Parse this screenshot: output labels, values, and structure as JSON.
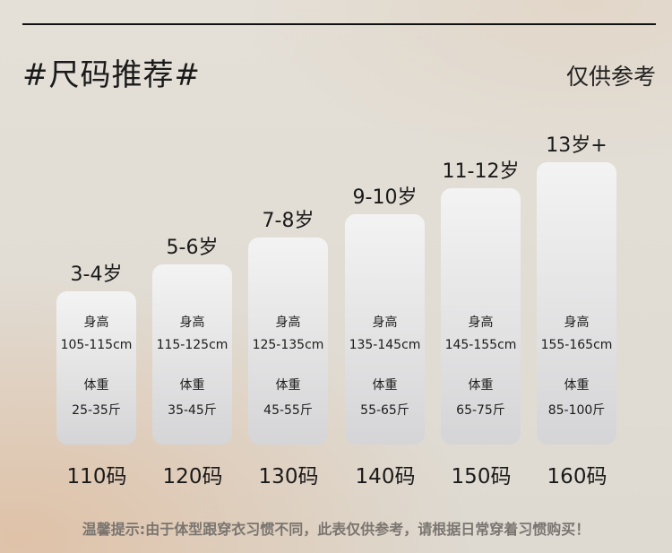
{
  "header": {
    "title": "#尺码推荐#",
    "note": "仅供参考"
  },
  "labels": {
    "height": "身高",
    "weight": "体重"
  },
  "sizes": [
    {
      "age": "3-4岁",
      "height": "105-115cm",
      "weight": "25-35斤",
      "size": "110码"
    },
    {
      "age": "5-6岁",
      "height": "115-125cm",
      "weight": "35-45斤",
      "size": "120码"
    },
    {
      "age": "7-8岁",
      "height": "125-135cm",
      "weight": "45-55斤",
      "size": "130码"
    },
    {
      "age": "9-10岁",
      "height": "135-145cm",
      "weight": "55-65斤",
      "size": "140码"
    },
    {
      "age": "11-12岁",
      "height": "145-155cm",
      "weight": "65-75斤",
      "size": "150码"
    },
    {
      "age": "13岁+",
      "height": "155-165cm",
      "weight": "85-100斤",
      "size": "160码"
    }
  ],
  "footer": {
    "tip": "温馨提示:由于体型跟穿衣习惯不同，此表仅供参考，请根据日常穿着习惯购买！"
  }
}
